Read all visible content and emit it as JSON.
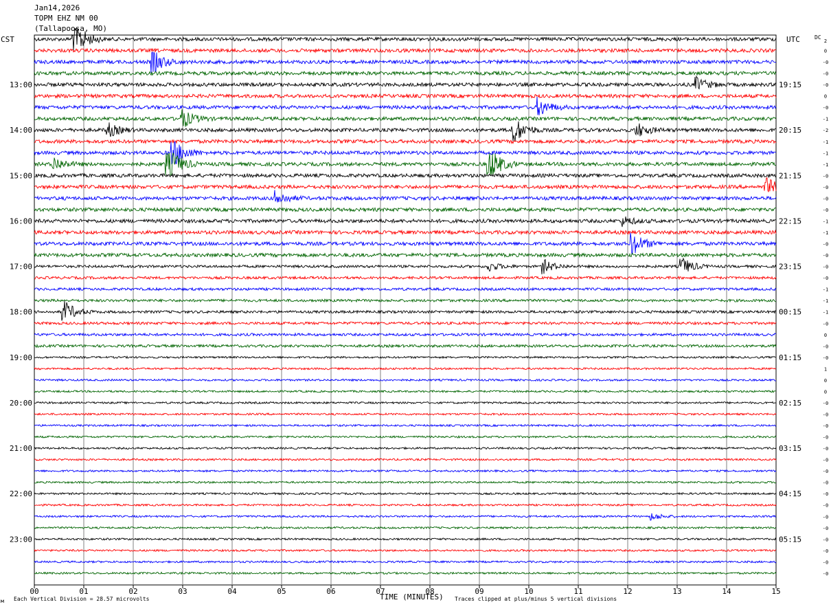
{
  "header": {
    "date": "Jan14,2026",
    "station": "TOPM EHZ NM 00",
    "location": "(Tallapoosa, MO)"
  },
  "left_tz": "CST",
  "right_tz": "UTC",
  "dc_label": "DC",
  "footer": {
    "scale_note": "Each Vertical Division =   28.57 microvolts",
    "xlabel": "TIME (MINUTES)",
    "clip_note": "Traces clipped at plus/minus 5 vertical divisions",
    "corner_mark": "м"
  },
  "colors": {
    "cycle": [
      "#000000",
      "#ff0000",
      "#0000ff",
      "#006400"
    ],
    "grid": "#808080"
  },
  "chart_data": {
    "type": "line",
    "title": "TOPM EHZ NM 00",
    "xlabel": "TIME (MINUTES)",
    "xlim": [
      0,
      15
    ],
    "x_ticks": [
      "00",
      "01",
      "02",
      "03",
      "04",
      "05",
      "06",
      "07",
      "08",
      "09",
      "10",
      "11",
      "12",
      "13",
      "14",
      "15"
    ],
    "left_hour_labels": [
      "13:00",
      "14:00",
      "15:00",
      "16:00",
      "17:00",
      "18:00",
      "19:00",
      "20:00",
      "21:00",
      "22:00",
      "23:00"
    ],
    "right_hour_labels": [
      "19:15",
      "20:15",
      "21:15",
      "22:15",
      "23:15",
      "00:15",
      "01:15",
      "02:15",
      "03:15",
      "04:15",
      "05:15"
    ],
    "trace_count": 48,
    "traces_per_hour": 4,
    "scale_microvolts_per_division": 28.57,
    "clip_divisions": 5,
    "dc_offsets": [
      "2",
      "0",
      "-0",
      "-0",
      "-0",
      "0",
      "-0",
      "-1",
      "-2",
      "-1",
      "-1",
      "-1",
      "-0",
      "-0",
      "-0",
      "-0",
      "-1",
      "-1",
      "-0",
      "-0",
      "-0",
      "-0",
      "-1",
      "-1",
      "-1",
      "-0",
      "0",
      "-0",
      "-0",
      "1",
      "0",
      "0",
      "-0",
      "-0",
      "-0",
      "-0",
      "-0",
      "-0",
      "-0",
      "-0",
      "-0",
      "-0",
      "-0",
      "-0",
      "-0",
      "-0",
      "-0",
      "-0"
    ],
    "events": [
      {
        "trace": 0,
        "minute": 0.8,
        "amplitude": 9
      },
      {
        "trace": 2,
        "minute": 2.4,
        "amplitude": 5
      },
      {
        "trace": 4,
        "minute": 13.4,
        "amplitude": 3
      },
      {
        "trace": 6,
        "minute": 10.2,
        "amplitude": 4
      },
      {
        "trace": 7,
        "minute": 3.0,
        "amplitude": 4
      },
      {
        "trace": 8,
        "minute": 1.5,
        "amplitude": 3
      },
      {
        "trace": 8,
        "minute": 9.7,
        "amplitude": 6
      },
      {
        "trace": 8,
        "minute": 12.2,
        "amplitude": 3
      },
      {
        "trace": 10,
        "minute": 2.8,
        "amplitude": 7
      },
      {
        "trace": 11,
        "minute": 2.7,
        "amplitude": 9
      },
      {
        "trace": 11,
        "minute": 9.2,
        "amplitude": 8
      },
      {
        "trace": 11,
        "minute": 0.4,
        "amplitude": 3
      },
      {
        "trace": 13,
        "minute": 14.8,
        "amplitude": 4
      },
      {
        "trace": 14,
        "minute": 4.9,
        "amplitude": 3
      },
      {
        "trace": 16,
        "minute": 11.9,
        "amplitude": 2
      },
      {
        "trace": 18,
        "minute": 12.1,
        "amplitude": 5
      },
      {
        "trace": 20,
        "minute": 10.3,
        "amplitude": 3
      },
      {
        "trace": 20,
        "minute": 13.1,
        "amplitude": 4
      },
      {
        "trace": 20,
        "minute": 9.2,
        "amplitude": 2
      },
      {
        "trace": 24,
        "minute": 0.6,
        "amplitude": 5
      },
      {
        "trace": 42,
        "minute": 12.5,
        "amplitude": 1.5
      }
    ]
  }
}
